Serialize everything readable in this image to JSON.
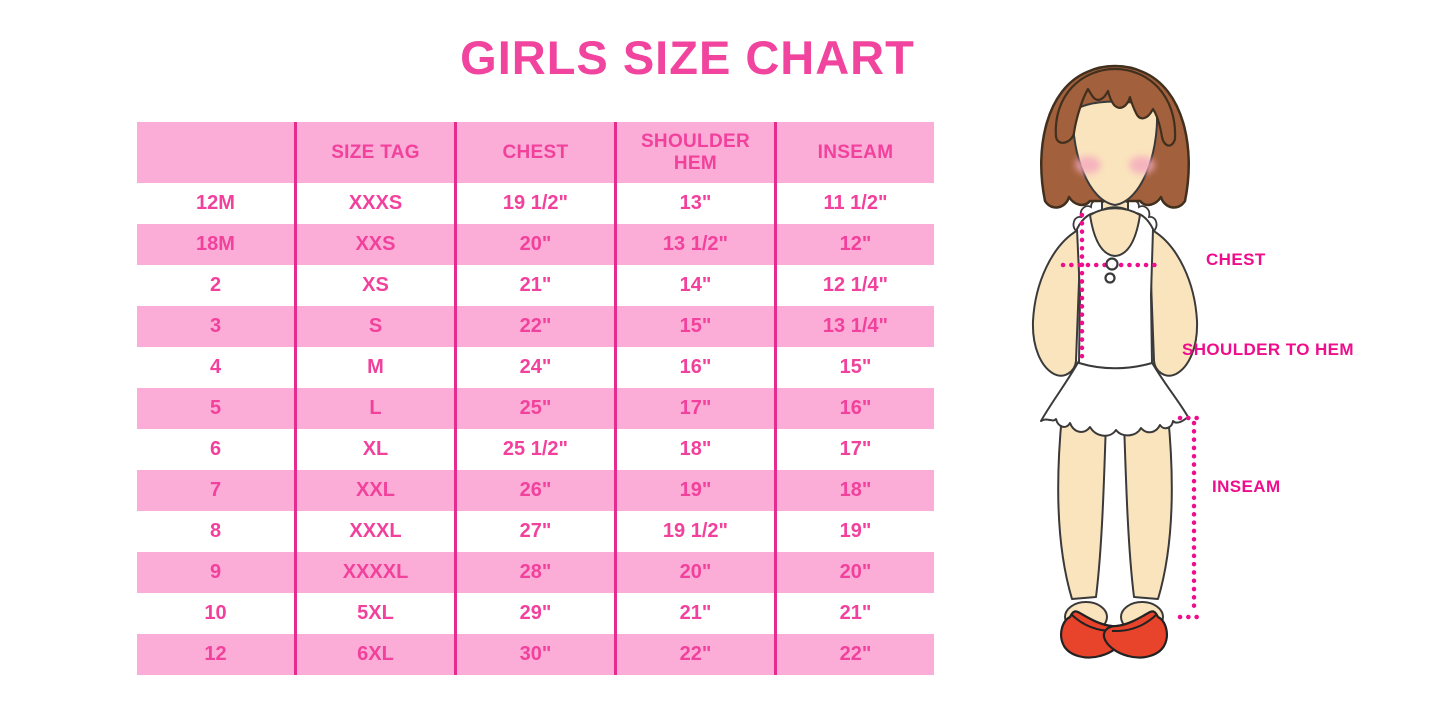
{
  "title": "GIRLS SIZE CHART",
  "accent_colors": {
    "band_pink": "#FBADD7",
    "divider_pink": "#E72A8E",
    "table_text_pink": "#F2419C",
    "title_pink": "#F1449E",
    "label_magenta": "#EE0E8C",
    "hair_brown": "#A2603C",
    "skin": "#FAE4BD",
    "shoe_red": "#E8432B"
  },
  "chart_data": {
    "type": "table",
    "title": "GIRLS SIZE CHART",
    "columns": [
      "",
      "SIZE TAG",
      "CHEST",
      "SHOULDER HEM",
      "INSEAM"
    ],
    "rows": [
      [
        "12M",
        "XXXS",
        "19 1/2\"",
        "13\"",
        "11 1/2\""
      ],
      [
        "18M",
        "XXS",
        "20\"",
        "13 1/2\"",
        "12\""
      ],
      [
        "2",
        "XS",
        "21\"",
        "14\"",
        "12 1/4\""
      ],
      [
        "3",
        "S",
        "22\"",
        "15\"",
        "13 1/4\""
      ],
      [
        "4",
        "M",
        "24\"",
        "16\"",
        "15\""
      ],
      [
        "5",
        "L",
        "25\"",
        "17\"",
        "16\""
      ],
      [
        "6",
        "XL",
        "25 1/2\"",
        "18\"",
        "17\""
      ],
      [
        "7",
        "XXL",
        "26\"",
        "19\"",
        "18\""
      ],
      [
        "8",
        "XXXL",
        "27\"",
        "19 1/2\"",
        "19\""
      ],
      [
        "9",
        "XXXXL",
        "28\"",
        "20\"",
        "20\""
      ],
      [
        "10",
        "5XL",
        "29\"",
        "21\"",
        "21\""
      ],
      [
        "12",
        "6XL",
        "30\"",
        "22\"",
        "22\""
      ]
    ]
  },
  "figure": {
    "labels": {
      "chest": "CHEST",
      "shoulder_to_hem": "SHOULDER TO HEM",
      "inseam": "INSEAM"
    }
  }
}
